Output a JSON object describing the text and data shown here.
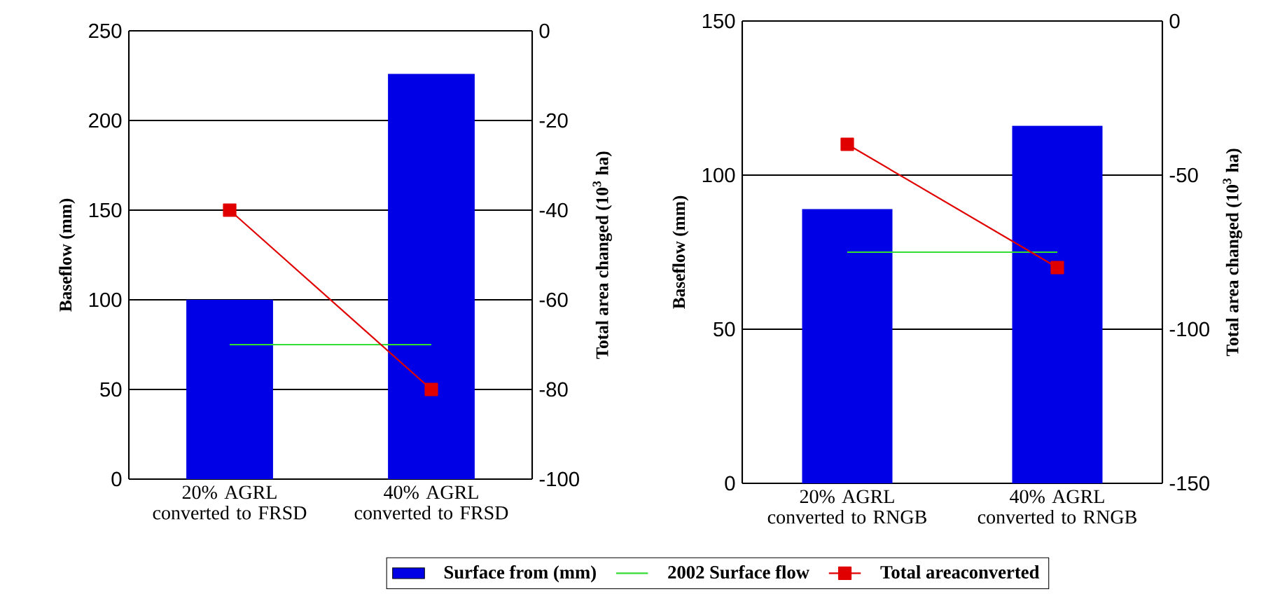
{
  "chart_data": [
    {
      "type": "bar",
      "categories": [
        "20%  AGRL  converted to FRSD",
        "40%  AGRL  converted to FRSD"
      ],
      "ylabel": "Baseflow (mm)",
      "y2label": "Total area changed (10$^{3}$ ha)",
      "ylim": [
        0,
        250
      ],
      "yticks": [
        0,
        50,
        100,
        150,
        200,
        250
      ],
      "y2lim": [
        -100,
        0
      ],
      "y2ticks": [
        -100,
        -80,
        -60,
        -40,
        -20,
        0
      ],
      "grid": "y",
      "legend": "bottom",
      "series": [
        {
          "name": "Surface from (mm)",
          "color": "#0000e6",
          "values": [
            100,
            226
          ]
        },
        {
          "type": "line",
          "name": "2002 Surface flow",
          "color": "#33dd33",
          "values": [
            75,
            75
          ]
        },
        {
          "type": "line",
          "name": "Total  areaconverted",
          "color": "#e00000",
          "axis": "y2",
          "marker": "square",
          "values": [
            -40,
            -80
          ]
        }
      ]
    },
    {
      "type": "bar",
      "categories": [
        "20%  AGRL  converted to RNGB",
        "40%  AGRL  converted to RNGB"
      ],
      "ylabel": "Baseflow (mm)",
      "y2label": "Total area changed (10$^{3}$ ha)",
      "ylim": [
        0,
        150
      ],
      "yticks": [
        0,
        50,
        100,
        150
      ],
      "y2lim": [
        -150,
        0
      ],
      "y2ticks": [
        -150,
        -100,
        -50,
        0
      ],
      "grid": "y",
      "series": [
        {
          "color": "#0000e6",
          "values": [
            89,
            116
          ]
        },
        {
          "type": "line",
          "color": "#33dd33",
          "values": [
            75,
            75
          ]
        },
        {
          "type": "line",
          "color": "#e00000",
          "axis": "y2",
          "marker": "square",
          "values": [
            -40,
            -80
          ]
        }
      ]
    }
  ]
}
